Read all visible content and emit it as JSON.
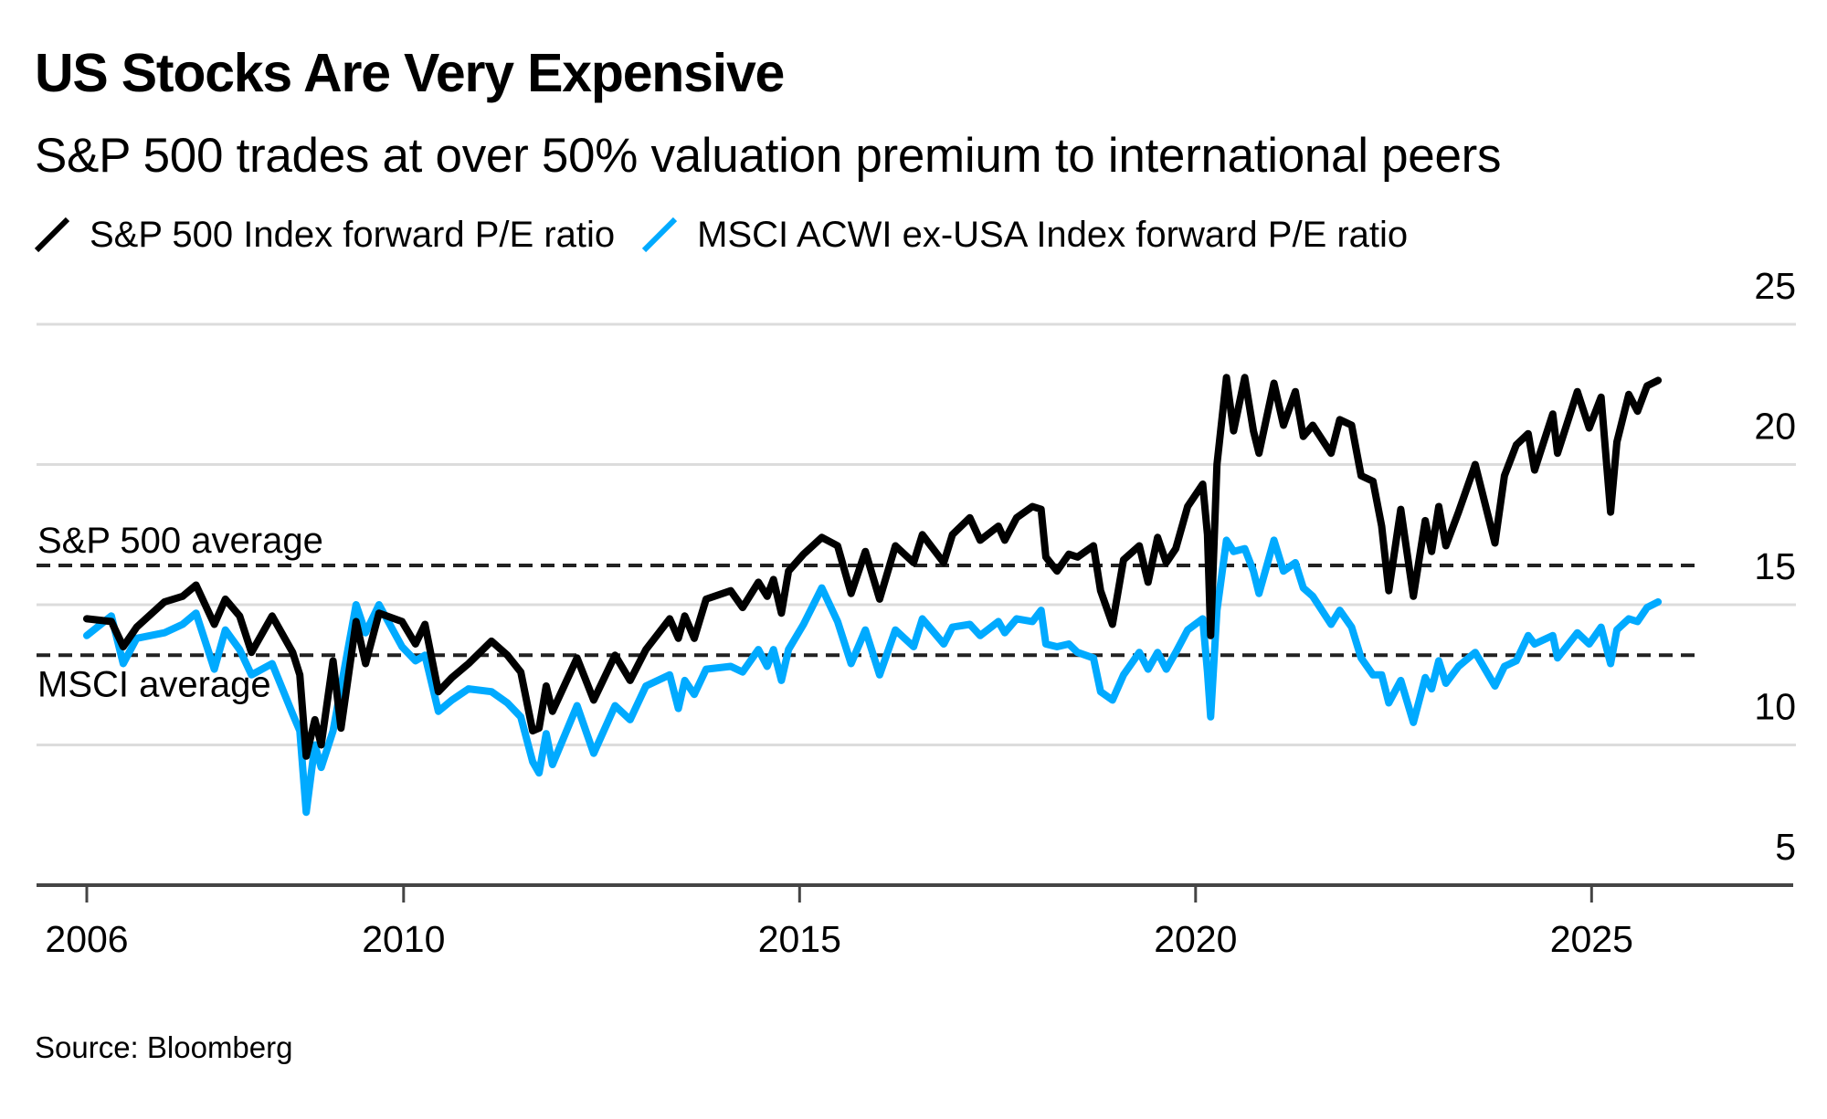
{
  "title": "US Stocks Are Very Expensive",
  "subtitle": "S&P 500 trades at over 50% valuation premium to international peers",
  "source": "Source: Bloomberg",
  "colors": {
    "sp500": "#000000",
    "msci": "#00aaff",
    "grid": "#dcdcdc",
    "axis": "#444444",
    "reference": "#222222"
  },
  "legend": [
    {
      "label": "S&P 500 Index forward P/E ratio",
      "icon": "diagonal-line-icon",
      "color": "#000000"
    },
    {
      "label": "MSCI ACWI ex-USA Index forward P/E ratio",
      "icon": "diagonal-line-icon",
      "color": "#00aaff"
    }
  ],
  "chart_data": {
    "type": "line",
    "title": "US Stocks Are Very Expensive",
    "subtitle": "S&P 500 trades at over 50% valuation premium to international peers",
    "xlabel": "",
    "ylabel": "",
    "xlim": [
      2005.75,
      2028.2
    ],
    "ylim": [
      5,
      25
    ],
    "x_ticks": [
      2006,
      2010,
      2015,
      2020,
      2025
    ],
    "x_tick_labels": [
      "2006",
      "2010",
      "2015",
      "2020",
      "2025"
    ],
    "y_ticks": [
      5,
      10,
      15,
      20,
      25
    ],
    "y_tick_labels": [
      "5",
      "10",
      "15",
      "20",
      "25"
    ],
    "y_axis_side": "right",
    "grid": "horizontal",
    "legend_position": "top-left",
    "reference_lines": [
      {
        "name": "S&P 500 average",
        "value": 16.4,
        "style": "dashed",
        "x_end": 2026.4
      },
      {
        "name": "MSCI average",
        "value": 13.2,
        "style": "dashed",
        "x_end": 2026.4
      }
    ],
    "series": [
      {
        "name": "S&P 500 Index forward P/E ratio",
        "color": "#000000",
        "x": [
          2006.0,
          2006.31,
          2006.46,
          2006.63,
          2006.98,
          2007.21,
          2007.38,
          2007.61,
          2007.75,
          2007.93,
          2008.08,
          2008.34,
          2008.6,
          2008.69,
          2008.77,
          2008.88,
          2008.96,
          2009.11,
          2009.21,
          2009.4,
          2009.52,
          2009.69,
          2009.98,
          2010.15,
          2010.27,
          2010.44,
          2010.61,
          2010.82,
          2011.11,
          2011.31,
          2011.48,
          2011.63,
          2011.71,
          2011.8,
          2011.88,
          2012.19,
          2012.4,
          2012.67,
          2012.86,
          2013.06,
          2013.36,
          2013.47,
          2013.55,
          2013.67,
          2013.82,
          2014.13,
          2014.28,
          2014.48,
          2014.59,
          2014.67,
          2014.77,
          2014.86,
          2015.05,
          2015.28,
          2015.48,
          2015.65,
          2015.83,
          2016.01,
          2016.21,
          2016.44,
          2016.55,
          2016.82,
          2016.93,
          2017.15,
          2017.28,
          2017.51,
          2017.59,
          2017.74,
          2017.94,
          2018.05,
          2018.11,
          2018.25,
          2018.4,
          2018.51,
          2018.71,
          2018.8,
          2018.95,
          2019.09,
          2019.29,
          2019.4,
          2019.52,
          2019.63,
          2019.75,
          2019.9,
          2020.09,
          2020.15,
          2020.19,
          2020.27,
          2020.39,
          2020.48,
          2020.62,
          2020.73,
          2020.8,
          2020.99,
          2021.11,
          2021.26,
          2021.36,
          2021.48,
          2021.71,
          2021.82,
          2021.97,
          2022.09,
          2022.24,
          2022.35,
          2022.44,
          2022.59,
          2022.75,
          2022.9,
          2022.98,
          2023.07,
          2023.16,
          2023.32,
          2023.53,
          2023.78,
          2023.9,
          2024.05,
          2024.2,
          2024.28,
          2024.51,
          2024.57,
          2024.82,
          2024.97,
          2025.12,
          2025.24,
          2025.32,
          2025.47,
          2025.58,
          2025.7,
          2025.84
        ],
        "values": [
          14.5,
          14.4,
          13.5,
          14.2,
          15.1,
          15.3,
          15.7,
          14.3,
          15.2,
          14.6,
          13.3,
          14.6,
          13.3,
          12.5,
          9.6,
          10.9,
          10.0,
          13.0,
          10.6,
          14.4,
          12.9,
          14.7,
          14.4,
          13.6,
          14.3,
          11.9,
          12.4,
          12.9,
          13.7,
          13.2,
          12.6,
          10.5,
          10.6,
          12.1,
          11.2,
          13.1,
          11.6,
          13.2,
          12.3,
          13.4,
          14.5,
          13.8,
          14.6,
          13.8,
          15.2,
          15.5,
          14.9,
          15.8,
          15.3,
          15.9,
          14.7,
          16.2,
          16.8,
          17.4,
          17.1,
          15.4,
          16.9,
          15.2,
          17.1,
          16.5,
          17.5,
          16.5,
          17.5,
          18.1,
          17.3,
          17.8,
          17.3,
          18.1,
          18.5,
          18.4,
          16.7,
          16.2,
          16.8,
          16.7,
          17.1,
          15.5,
          14.3,
          16.6,
          17.1,
          15.8,
          17.4,
          16.5,
          17.0,
          18.5,
          19.3,
          17.5,
          13.9,
          20.0,
          23.1,
          21.2,
          23.1,
          21.2,
          20.4,
          22.9,
          21.4,
          22.6,
          21.0,
          21.4,
          20.4,
          21.6,
          21.4,
          19.6,
          19.4,
          17.8,
          15.5,
          18.4,
          15.3,
          18.0,
          16.9,
          18.5,
          17.1,
          18.3,
          20.0,
          17.2,
          19.6,
          20.7,
          21.1,
          19.8,
          21.8,
          20.4,
          22.6,
          21.3,
          22.4,
          18.3,
          20.8,
          22.5,
          21.9,
          22.8,
          23.0
        ]
      },
      {
        "name": "MSCI ACWI ex-USA Index forward P/E ratio",
        "color": "#00aaff",
        "x": [
          2006.0,
          2006.31,
          2006.46,
          2006.63,
          2006.98,
          2007.21,
          2007.38,
          2007.61,
          2007.75,
          2007.93,
          2008.08,
          2008.34,
          2008.6,
          2008.69,
          2008.77,
          2008.88,
          2008.96,
          2009.11,
          2009.4,
          2009.52,
          2009.69,
          2009.98,
          2010.15,
          2010.27,
          2010.44,
          2010.61,
          2010.82,
          2011.11,
          2011.31,
          2011.48,
          2011.63,
          2011.71,
          2011.8,
          2011.88,
          2012.19,
          2012.4,
          2012.67,
          2012.86,
          2013.06,
          2013.36,
          2013.47,
          2013.55,
          2013.67,
          2013.82,
          2014.13,
          2014.28,
          2014.48,
          2014.59,
          2014.67,
          2014.77,
          2014.86,
          2015.05,
          2015.28,
          2015.48,
          2015.65,
          2015.83,
          2016.01,
          2016.21,
          2016.44,
          2016.55,
          2016.82,
          2016.93,
          2017.15,
          2017.28,
          2017.51,
          2017.59,
          2017.74,
          2017.94,
          2018.05,
          2018.11,
          2018.25,
          2018.4,
          2018.51,
          2018.71,
          2018.8,
          2018.95,
          2019.09,
          2019.29,
          2019.4,
          2019.52,
          2019.63,
          2019.75,
          2019.9,
          2020.09,
          2020.15,
          2020.19,
          2020.27,
          2020.39,
          2020.48,
          2020.62,
          2020.73,
          2020.8,
          2020.99,
          2021.11,
          2021.26,
          2021.36,
          2021.48,
          2021.71,
          2021.82,
          2021.97,
          2022.09,
          2022.24,
          2022.35,
          2022.44,
          2022.59,
          2022.75,
          2022.9,
          2022.98,
          2023.07,
          2023.16,
          2023.32,
          2023.53,
          2023.78,
          2023.9,
          2024.05,
          2024.2,
          2024.28,
          2024.51,
          2024.57,
          2024.82,
          2024.97,
          2025.12,
          2025.24,
          2025.32,
          2025.47,
          2025.58,
          2025.7,
          2025.84
        ],
        "values": [
          13.9,
          14.6,
          12.9,
          13.8,
          14.0,
          14.3,
          14.7,
          12.7,
          14.1,
          13.4,
          12.5,
          12.9,
          11.1,
          10.5,
          7.6,
          10.0,
          9.2,
          10.5,
          15.0,
          14.0,
          15.0,
          13.5,
          13.0,
          13.2,
          11.2,
          11.6,
          12.0,
          11.9,
          11.5,
          11.0,
          9.4,
          9.0,
          10.4,
          9.3,
          11.4,
          9.7,
          11.4,
          10.9,
          12.1,
          12.5,
          11.3,
          12.3,
          11.8,
          12.7,
          12.8,
          12.6,
          13.4,
          12.8,
          13.4,
          12.3,
          13.4,
          14.3,
          15.6,
          14.4,
          12.9,
          14.1,
          12.5,
          14.1,
          13.5,
          14.5,
          13.6,
          14.2,
          14.3,
          13.9,
          14.4,
          14.0,
          14.5,
          14.4,
          14.8,
          13.6,
          13.5,
          13.6,
          13.3,
          13.1,
          11.9,
          11.6,
          12.5,
          13.3,
          12.7,
          13.3,
          12.7,
          13.3,
          14.1,
          14.5,
          12.6,
          11.0,
          14.8,
          17.3,
          16.9,
          17.0,
          16.2,
          15.4,
          17.3,
          16.2,
          16.5,
          15.6,
          15.3,
          14.3,
          14.8,
          14.2,
          13.1,
          12.5,
          12.5,
          11.5,
          12.3,
          10.8,
          12.4,
          12.0,
          13.0,
          12.2,
          12.8,
          13.3,
          12.1,
          12.8,
          13.0,
          13.9,
          13.6,
          13.9,
          13.1,
          14.0,
          13.6,
          14.2,
          12.9,
          14.1,
          14.5,
          14.4,
          14.9,
          15.1
        ]
      }
    ]
  }
}
